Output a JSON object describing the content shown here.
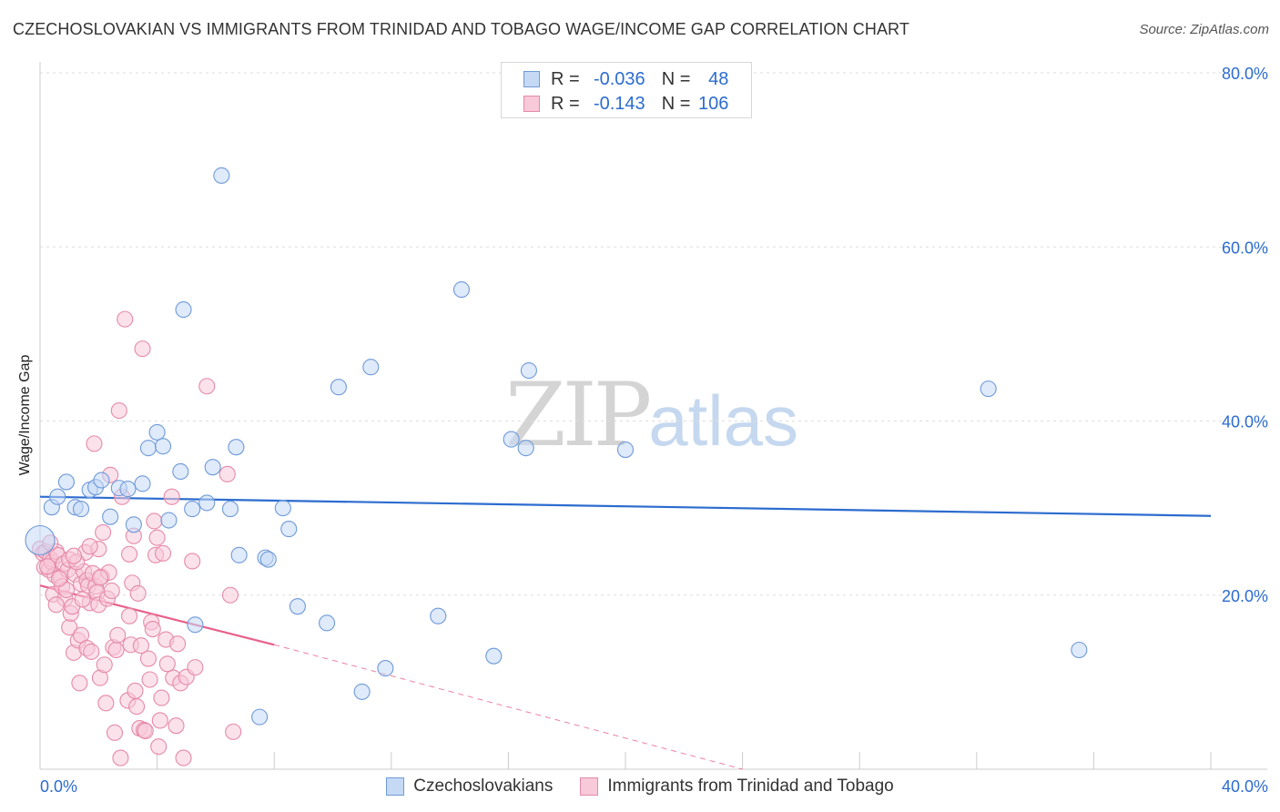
{
  "title": "CZECHOSLOVAKIAN VS IMMIGRANTS FROM TRINIDAD AND TOBAGO WAGE/INCOME GAP CORRELATION CHART",
  "source": "Source: ZipAtlas.com",
  "watermark": {
    "zip": "ZIP",
    "atlas": "atlas"
  },
  "legend": {
    "r_label": "R =",
    "n_label": "N =",
    "rows": [
      {
        "name": "Czechoslovakians",
        "r": "-0.036",
        "n": "48",
        "color": "#6f9ad8"
      },
      {
        "name": "Immigrants from Trinidad and Tobago",
        "r": "-0.143",
        "n": "106",
        "color": "#e58aa8"
      }
    ]
  },
  "chart_data": {
    "type": "scatter",
    "title": "CZECHOSLOVAKIAN VS IMMIGRANTS FROM TRINIDAD AND TOBAGO WAGE/INCOME GAP CORRELATION CHART",
    "xlabel": "",
    "ylabel": "Wage/Income Gap",
    "xlim": [
      0,
      40
    ],
    "ylim": [
      0,
      80
    ],
    "x_tick_labels": [
      "0.0%",
      "40.0%"
    ],
    "y_tick_labels": [
      "20.0%",
      "40.0%",
      "60.0%",
      "80.0%"
    ],
    "y_ticks": [
      20,
      40,
      60,
      80
    ],
    "x_minor_ticks": [
      4,
      8,
      12,
      16,
      20,
      24,
      28,
      32,
      36,
      40
    ],
    "grid": true,
    "legend_position": "top-center",
    "series": [
      {
        "name": "Czechoslovakians",
        "color": "#6f9ad8",
        "fill": "#c5d9f5",
        "trend": {
          "x": [
            0,
            40
          ],
          "y": [
            31.3,
            29.1
          ],
          "color": "#2c6ccf"
        },
        "points": [
          [
            0.0,
            26.3
          ],
          [
            0.4,
            30.1
          ],
          [
            0.6,
            31.3
          ],
          [
            0.9,
            33.0
          ],
          [
            1.2,
            30.1
          ],
          [
            1.4,
            29.9
          ],
          [
            1.7,
            32.1
          ],
          [
            1.9,
            32.4
          ],
          [
            2.1,
            33.2
          ],
          [
            2.4,
            29.0
          ],
          [
            2.7,
            32.3
          ],
          [
            3.0,
            32.2
          ],
          [
            3.2,
            28.1
          ],
          [
            3.5,
            32.8
          ],
          [
            3.7,
            36.9
          ],
          [
            4.0,
            38.7
          ],
          [
            4.2,
            37.1
          ],
          [
            4.4,
            28.6
          ],
          [
            4.8,
            34.2
          ],
          [
            4.9,
            52.8
          ],
          [
            5.2,
            29.9
          ],
          [
            5.3,
            16.6
          ],
          [
            5.7,
            30.6
          ],
          [
            5.9,
            34.7
          ],
          [
            6.2,
            68.2
          ],
          [
            6.5,
            29.9
          ],
          [
            6.7,
            37.0
          ],
          [
            6.8,
            24.6
          ],
          [
            7.5,
            6.0
          ],
          [
            7.7,
            24.3
          ],
          [
            7.8,
            24.1
          ],
          [
            8.3,
            30.0
          ],
          [
            8.5,
            27.6
          ],
          [
            8.8,
            18.7
          ],
          [
            9.8,
            16.8
          ],
          [
            10.2,
            43.9
          ],
          [
            11.0,
            8.9
          ],
          [
            11.3,
            46.2
          ],
          [
            11.8,
            11.6
          ],
          [
            13.6,
            17.6
          ],
          [
            14.4,
            55.1
          ],
          [
            15.5,
            13.0
          ],
          [
            16.1,
            37.9
          ],
          [
            16.6,
            36.9
          ],
          [
            16.7,
            45.8
          ],
          [
            20.0,
            36.7
          ],
          [
            32.4,
            43.7
          ],
          [
            35.5,
            13.7
          ]
        ]
      },
      {
        "name": "Immigrants from Trinidad and Tobago",
        "color": "#e58aa8",
        "fill": "#f8c9d8",
        "trend": {
          "x": [
            0,
            8
          ],
          "y": [
            21.1,
            14.3
          ],
          "x_dashed": [
            8,
            24
          ],
          "y_dashed": [
            14.3,
            0.0
          ],
          "color": "#e8608a"
        },
        "points": [
          [
            0.0,
            25.3
          ],
          [
            0.1,
            24.8
          ],
          [
            0.15,
            23.2
          ],
          [
            0.2,
            25.0
          ],
          [
            0.3,
            22.9
          ],
          [
            0.35,
            24.2
          ],
          [
            0.4,
            23.8
          ],
          [
            0.45,
            20.1
          ],
          [
            0.5,
            22.3
          ],
          [
            0.55,
            25.0
          ],
          [
            0.6,
            24.6
          ],
          [
            0.7,
            22.1
          ],
          [
            0.75,
            21.0
          ],
          [
            0.8,
            23.6
          ],
          [
            0.85,
            19.6
          ],
          [
            0.9,
            20.6
          ],
          [
            0.95,
            22.9
          ],
          [
            1.0,
            24.1
          ],
          [
            1.0,
            16.3
          ],
          [
            1.05,
            17.9
          ],
          [
            1.1,
            18.7
          ],
          [
            1.15,
            13.4
          ],
          [
            1.2,
            22.4
          ],
          [
            1.3,
            14.8
          ],
          [
            1.35,
            9.9
          ],
          [
            1.4,
            15.4
          ],
          [
            1.4,
            21.3
          ],
          [
            1.5,
            22.7
          ],
          [
            1.55,
            24.9
          ],
          [
            1.6,
            21.7
          ],
          [
            1.6,
            13.9
          ],
          [
            1.65,
            21.1
          ],
          [
            1.7,
            19.1
          ],
          [
            1.75,
            13.5
          ],
          [
            1.8,
            22.5
          ],
          [
            1.85,
            37.4
          ],
          [
            1.9,
            21.0
          ],
          [
            1.95,
            20.3
          ],
          [
            2.0,
            18.9
          ],
          [
            2.0,
            25.3
          ],
          [
            2.05,
            10.5
          ],
          [
            2.1,
            22.1
          ],
          [
            2.15,
            27.2
          ],
          [
            2.2,
            12.0
          ],
          [
            2.25,
            7.6
          ],
          [
            2.3,
            19.6
          ],
          [
            2.35,
            22.6
          ],
          [
            2.4,
            33.8
          ],
          [
            2.5,
            14.0
          ],
          [
            2.55,
            4.2
          ],
          [
            2.6,
            13.7
          ],
          [
            2.7,
            41.2
          ],
          [
            2.8,
            31.3
          ],
          [
            2.9,
            51.7
          ],
          [
            3.0,
            7.9
          ],
          [
            3.05,
            24.7
          ],
          [
            3.1,
            14.3
          ],
          [
            3.15,
            21.4
          ],
          [
            3.2,
            26.8
          ],
          [
            3.25,
            9.0
          ],
          [
            3.3,
            7.2
          ],
          [
            3.35,
            20.2
          ],
          [
            3.4,
            4.7
          ],
          [
            3.5,
            48.3
          ],
          [
            3.55,
            4.5
          ],
          [
            3.6,
            4.4
          ],
          [
            3.7,
            12.7
          ],
          [
            3.8,
            16.9
          ],
          [
            3.85,
            16.1
          ],
          [
            3.9,
            28.5
          ],
          [
            3.95,
            24.6
          ],
          [
            4.0,
            26.6
          ],
          [
            4.05,
            2.6
          ],
          [
            4.1,
            5.6
          ],
          [
            4.2,
            24.8
          ],
          [
            4.3,
            14.9
          ],
          [
            4.5,
            31.3
          ],
          [
            4.55,
            10.5
          ],
          [
            4.7,
            14.4
          ],
          [
            4.8,
            9.9
          ],
          [
            4.9,
            1.3
          ],
          [
            5.0,
            10.6
          ],
          [
            5.2,
            23.9
          ],
          [
            5.3,
            11.7
          ],
          [
            5.7,
            44.0
          ],
          [
            6.4,
            33.9
          ],
          [
            6.5,
            20.0
          ],
          [
            6.6,
            4.3
          ],
          [
            2.75,
            1.3
          ],
          [
            1.25,
            23.8
          ],
          [
            0.65,
            21.9
          ],
          [
            0.25,
            23.3
          ],
          [
            1.45,
            19.5
          ],
          [
            2.45,
            20.5
          ],
          [
            3.45,
            14.2
          ],
          [
            4.35,
            12.1
          ],
          [
            0.55,
            18.9
          ],
          [
            1.7,
            25.6
          ],
          [
            2.65,
            15.4
          ],
          [
            3.75,
            10.3
          ],
          [
            0.35,
            26.0
          ],
          [
            1.15,
            24.5
          ],
          [
            2.05,
            22.0
          ],
          [
            3.05,
            17.6
          ],
          [
            4.15,
            8.2
          ],
          [
            4.65,
            5.0
          ]
        ]
      }
    ]
  }
}
